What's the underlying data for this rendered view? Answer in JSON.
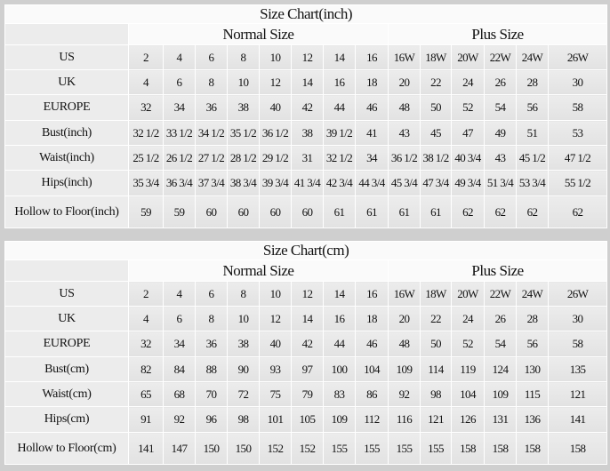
{
  "group_headers": {
    "normal": "Normal Size",
    "plus": "Plus Size"
  },
  "tables": [
    {
      "title": "Size Chart(inch)",
      "rows": [
        {
          "label": "US",
          "values": [
            "2",
            "4",
            "6",
            "8",
            "10",
            "12",
            "14",
            "16",
            "16W",
            "18W",
            "20W",
            "22W",
            "24W",
            "26W"
          ]
        },
        {
          "label": "UK",
          "values": [
            "4",
            "6",
            "8",
            "10",
            "12",
            "14",
            "16",
            "18",
            "20",
            "22",
            "24",
            "26",
            "28",
            "30"
          ]
        },
        {
          "label": "EUROPE",
          "values": [
            "32",
            "34",
            "36",
            "38",
            "40",
            "42",
            "44",
            "46",
            "48",
            "50",
            "52",
            "54",
            "56",
            "58"
          ]
        },
        {
          "label": "Bust(inch)",
          "values": [
            "32 1/2",
            "33 1/2",
            "34 1/2",
            "35 1/2",
            "36 1/2",
            "38",
            "39 1/2",
            "41",
            "43",
            "45",
            "47",
            "49",
            "51",
            "53"
          ]
        },
        {
          "label": "Waist(inch)",
          "values": [
            "25 1/2",
            "26 1/2",
            "27 1/2",
            "28 1/2",
            "29 1/2",
            "31",
            "32 1/2",
            "34",
            "36 1/2",
            "38 1/2",
            "40 3/4",
            "43",
            "45 1/2",
            "47 1/2"
          ]
        },
        {
          "label": "Hips(inch)",
          "values": [
            "35 3/4",
            "36 3/4",
            "37 3/4",
            "38 3/4",
            "39 3/4",
            "41 3/4",
            "42 3/4",
            "44 3/4",
            "45 3/4",
            "47 3/4",
            "49 3/4",
            "51 3/4",
            "53 3/4",
            "55 1/2"
          ]
        },
        {
          "label": "Hollow to Floor(inch)",
          "values": [
            "59",
            "59",
            "60",
            "60",
            "60",
            "60",
            "61",
            "61",
            "61",
            "61",
            "62",
            "62",
            "62",
            "62"
          ]
        }
      ]
    },
    {
      "title": "Size Chart(cm)",
      "rows": [
        {
          "label": "US",
          "values": [
            "2",
            "4",
            "6",
            "8",
            "10",
            "12",
            "14",
            "16",
            "16W",
            "18W",
            "20W",
            "22W",
            "24W",
            "26W"
          ]
        },
        {
          "label": "UK",
          "values": [
            "4",
            "6",
            "8",
            "10",
            "12",
            "14",
            "16",
            "18",
            "20",
            "22",
            "24",
            "26",
            "28",
            "30"
          ]
        },
        {
          "label": "EUROPE",
          "values": [
            "32",
            "34",
            "36",
            "38",
            "40",
            "42",
            "44",
            "46",
            "48",
            "50",
            "52",
            "54",
            "56",
            "58"
          ]
        },
        {
          "label": "Bust(cm)",
          "values": [
            "82",
            "84",
            "88",
            "90",
            "93",
            "97",
            "100",
            "104",
            "109",
            "114",
            "119",
            "124",
            "130",
            "135"
          ]
        },
        {
          "label": "Waist(cm)",
          "values": [
            "65",
            "68",
            "70",
            "72",
            "75",
            "79",
            "83",
            "86",
            "92",
            "98",
            "104",
            "109",
            "115",
            "121"
          ]
        },
        {
          "label": "Hips(cm)",
          "values": [
            "91",
            "92",
            "96",
            "98",
            "101",
            "105",
            "109",
            "112",
            "116",
            "121",
            "126",
            "131",
            "136",
            "141"
          ]
        },
        {
          "label": "Hollow to Floor(cm)",
          "values": [
            "141",
            "147",
            "150",
            "150",
            "152",
            "152",
            "155",
            "155",
            "155",
            "155",
            "158",
            "158",
            "158",
            "158"
          ]
        }
      ]
    }
  ]
}
